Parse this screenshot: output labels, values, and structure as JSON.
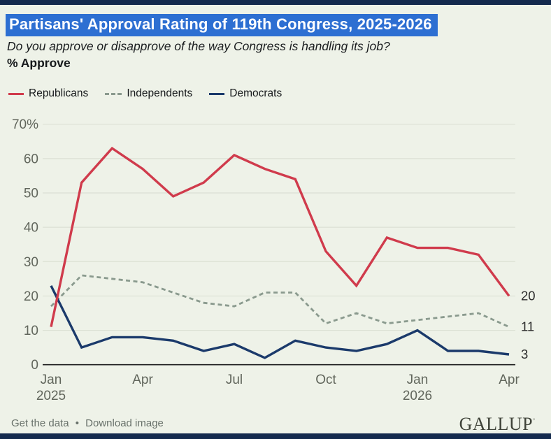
{
  "title": "Partisans' Approval Rating of 119th Congress, 2025-2026",
  "subtitle": "Do you approve or disapprove of the way Congress is handling its job?",
  "measure_label": "% Approve",
  "colors": {
    "republicans": "#d03b4c",
    "independents": "#8a9a8e",
    "democrats": "#1b3a6b",
    "grid": "#dbe0d4",
    "baseline": "#1f1f1f",
    "title_highlight": "#2d6fd2",
    "band": "#142a4d",
    "background": "#eef2e8"
  },
  "legend": [
    {
      "label": "Republicans",
      "color": "#d03b4c",
      "style": "solid"
    },
    {
      "label": "Independents",
      "color": "#8a9a8e",
      "style": "dashed"
    },
    {
      "label": "Democrats",
      "color": "#1b3a6b",
      "style": "solid"
    }
  ],
  "chart_data": {
    "type": "line",
    "x": [
      "Jan 2025",
      "Feb 2025",
      "Mar 2025",
      "Apr 2025",
      "May 2025",
      "Jun 2025",
      "Jul 2025",
      "Aug 2025",
      "Sep 2025",
      "Oct 2025",
      "Nov 2025",
      "Dec 2025",
      "Jan 2026",
      "Feb 2026",
      "Mar 2026",
      "Apr 2026"
    ],
    "series": [
      {
        "name": "Republicans",
        "color": "#d03b4c",
        "dash": false,
        "values": [
          11,
          53,
          63,
          57,
          49,
          53,
          61,
          57,
          54,
          33,
          23,
          37,
          34,
          34,
          32,
          20
        ],
        "end_label": "20"
      },
      {
        "name": "Independents",
        "color": "#8a9a8e",
        "dash": true,
        "values": [
          17,
          26,
          25,
          24,
          21,
          18,
          17,
          21,
          21,
          12,
          15,
          12,
          13,
          14,
          15,
          11
        ],
        "end_label": "11"
      },
      {
        "name": "Democrats",
        "color": "#1b3a6b",
        "dash": false,
        "values": [
          23,
          5,
          8,
          8,
          7,
          4,
          6,
          2,
          7,
          5,
          4,
          6,
          10,
          4,
          4,
          3
        ],
        "end_label": "3"
      }
    ],
    "ylim": [
      0,
      70
    ],
    "yticks": [
      {
        "value": 0,
        "label": "0"
      },
      {
        "value": 10,
        "label": "10"
      },
      {
        "value": 20,
        "label": "20"
      },
      {
        "value": 30,
        "label": "30"
      },
      {
        "value": 40,
        "label": "40"
      },
      {
        "value": 50,
        "label": "50"
      },
      {
        "value": 60,
        "label": "60"
      },
      {
        "value": 70,
        "label": "70%"
      }
    ],
    "xticks": [
      {
        "index": 0,
        "line1": "Jan",
        "line2": "2025"
      },
      {
        "index": 3,
        "line1": "Apr",
        "line2": ""
      },
      {
        "index": 6,
        "line1": "Jul",
        "line2": ""
      },
      {
        "index": 9,
        "line1": "Oct",
        "line2": ""
      },
      {
        "index": 12,
        "line1": "Jan",
        "line2": "2026"
      },
      {
        "index": 15,
        "line1": "Apr",
        "line2": ""
      }
    ],
    "grid": true,
    "legend_position": "top"
  },
  "footer": {
    "links": [
      "Get the data",
      "Download image"
    ],
    "separator": "•",
    "brand": "GALLUP",
    "brand_mark": "’"
  }
}
